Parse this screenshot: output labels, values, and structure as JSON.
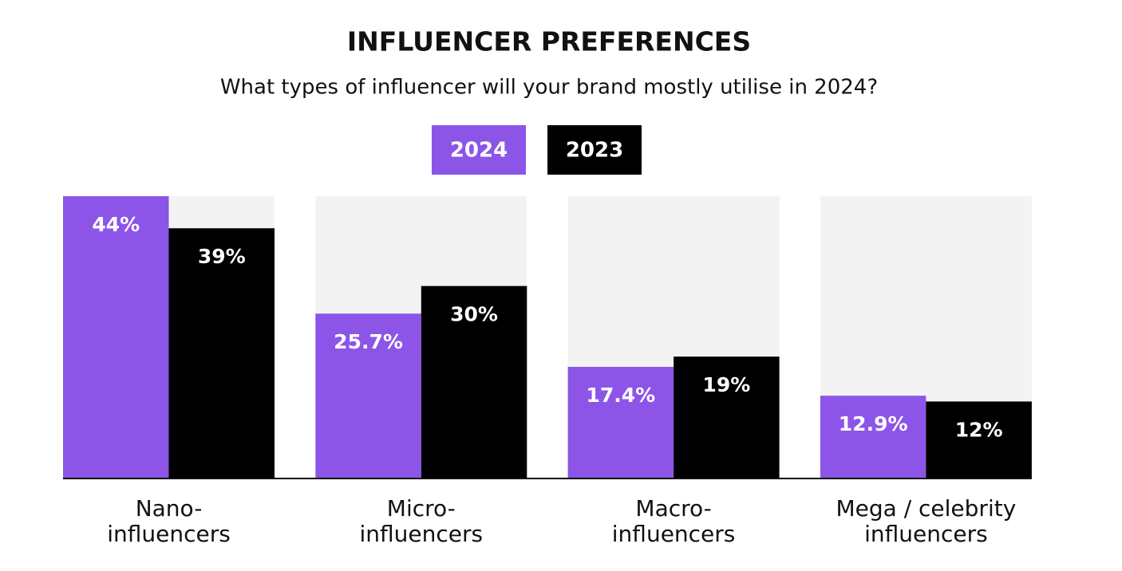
{
  "chart_data": {
    "type": "bar",
    "title": "INFLUENCER PREFERENCES",
    "subtitle": "What types of influencer will your brand mostly utilise in 2024?",
    "categories": [
      "Nano-\ninfluencers",
      "Micro-\ninfluencers",
      "Macro-\ninfluencers",
      "Mega / celebrity\ninfluencers"
    ],
    "series": [
      {
        "name": "2024",
        "color": "#8c55e8",
        "values": [
          44,
          25.7,
          17.4,
          12.9
        ],
        "value_labels": [
          "44%",
          "25.7%",
          "17.4%",
          "12.9%"
        ]
      },
      {
        "name": "2023",
        "color": "#000000",
        "values": [
          39,
          30,
          19,
          12
        ],
        "value_labels": [
          "39%",
          "30%",
          "19%",
          "12%"
        ]
      }
    ],
    "ylim": [
      0,
      44
    ]
  }
}
